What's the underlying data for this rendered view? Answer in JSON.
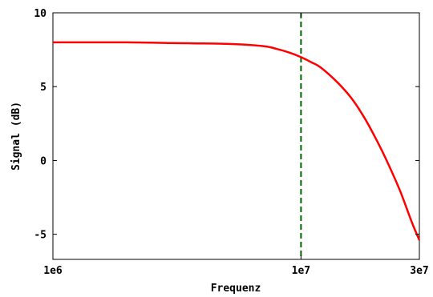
{
  "chart_data": {
    "type": "line",
    "xlabel": "Frequenz",
    "ylabel": "Signal (dB)",
    "x_scale": "log",
    "xlim": [
      1000000,
      30000000
    ],
    "ylim": [
      -6.7,
      10
    ],
    "x_ticks": [
      {
        "value": 1000000,
        "label": "1e6"
      },
      {
        "value": 10000000,
        "label": "1e7"
      },
      {
        "value": 30000000,
        "label": "3e7"
      }
    ],
    "y_ticks": [
      {
        "value": 10,
        "label": "10"
      },
      {
        "value": 5,
        "label": "5"
      },
      {
        "value": 0,
        "label": "0"
      },
      {
        "value": -5,
        "label": "-5"
      }
    ],
    "grid": false,
    "series": [
      {
        "color": "#ff0000",
        "x": [
          1000000,
          2000000,
          3000000,
          5000000,
          7000000,
          8000000,
          9000000,
          10000000,
          11000000,
          12000000,
          14000000,
          16000000,
          18000000,
          20000000,
          22000000,
          25000000,
          28000000,
          30000000
        ],
        "y": [
          8.0,
          8.0,
          7.95,
          7.9,
          7.75,
          7.55,
          7.3,
          7.0,
          6.65,
          6.3,
          5.3,
          4.2,
          2.9,
          1.5,
          0.1,
          -2.0,
          -4.2,
          -5.4
        ]
      }
    ],
    "annotations": [
      {
        "type": "vline",
        "x": 10000000,
        "color": "#006400",
        "style": "dashed"
      }
    ]
  }
}
